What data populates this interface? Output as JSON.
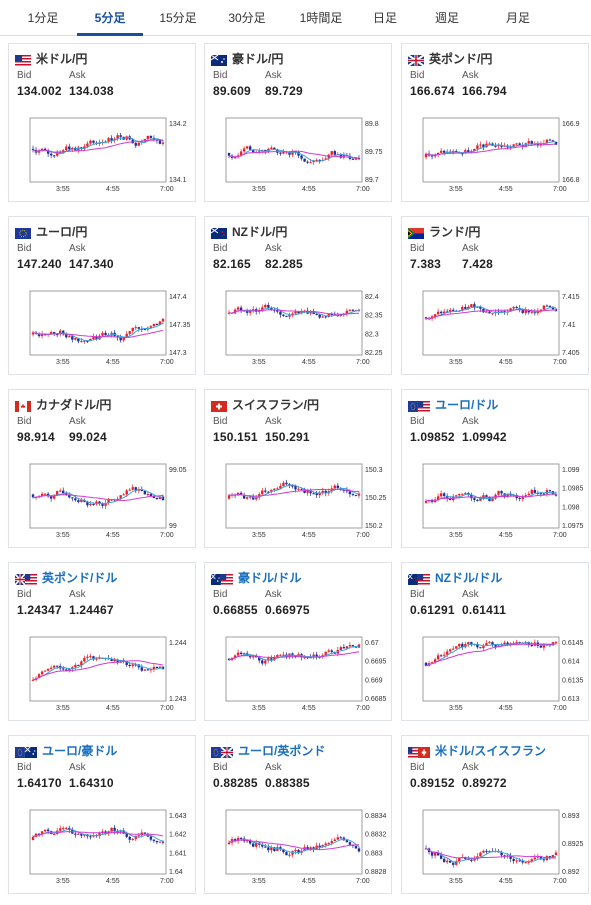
{
  "tabs": [
    {
      "label": "1分足",
      "active": false
    },
    {
      "label": "5分足",
      "active": true
    },
    {
      "label": "15分足",
      "active": false
    },
    {
      "label": "30分足",
      "active": false
    },
    {
      "label": "1時間足",
      "active": false
    },
    {
      "label": "日足",
      "active": false
    },
    {
      "label": "週足",
      "active": false
    },
    {
      "label": "月足",
      "active": false
    }
  ],
  "labels": {
    "bid": "Bid",
    "ask": "Ask"
  },
  "colors": {
    "up": "#e8212d",
    "down": "#1f2f99",
    "ma_short": "#3fa3d9",
    "ma_long": "#d23ad6",
    "accent": "#1a4f9c"
  },
  "cards": [
    {
      "pair": "米ドル/円",
      "flag": "us",
      "bid": "134.002",
      "ask": "134.038",
      "ticks": [
        "134.2",
        "134.1"
      ],
      "xt": [
        "3:55",
        "4:55",
        "7:00"
      ],
      "seed": 1
    },
    {
      "pair": "豪ドル/円",
      "flag": "au",
      "bid": "89.609",
      "ask": "89.729",
      "ticks": [
        "89.8",
        "89.75",
        "89.7"
      ],
      "xt": [
        "3:55",
        "4:55",
        "7:00"
      ],
      "seed": 2
    },
    {
      "pair": "英ポンド/円",
      "flag": "gb",
      "bid": "166.674",
      "ask": "166.794",
      "ticks": [
        "166.9",
        "166.8"
      ],
      "xt": [
        "3:55",
        "4:55",
        "7:00"
      ],
      "seed": 3
    },
    {
      "pair": "ユーロ/円",
      "flag": "eu",
      "bid": "147.240",
      "ask": "147.340",
      "ticks": [
        "147.4",
        "147.35",
        "147.3"
      ],
      "xt": [
        "3:55",
        "4:55",
        "7:00"
      ],
      "seed": 4
    },
    {
      "pair": "NZドル/円",
      "flag": "nz",
      "bid": "82.165",
      "ask": "82.285",
      "ticks": [
        "82.4",
        "82.35",
        "82.3",
        "82.25"
      ],
      "xt": [
        "3:55",
        "4:55",
        "7:00"
      ],
      "seed": 5
    },
    {
      "pair": "ランド/円",
      "flag": "za",
      "bid": "7.383",
      "ask": "7.428",
      "ticks": [
        "7.415",
        "7.41",
        "7.405"
      ],
      "xt": [
        "3:55",
        "4:55",
        "7:00"
      ],
      "seed": 6
    },
    {
      "pair": "カナダドル/円",
      "flag": "ca",
      "bid": "98.914",
      "ask": "99.024",
      "ticks": [
        "99.05",
        "99"
      ],
      "xt": [
        "3:55",
        "4:55",
        "7:00"
      ],
      "seed": 7
    },
    {
      "pair": "スイスフラン/円",
      "flag": "ch",
      "bid": "150.151",
      "ask": "150.291",
      "ticks": [
        "150.3",
        "150.25",
        "150.2"
      ],
      "xt": [
        "3:55",
        "4:55",
        "7:00"
      ],
      "seed": 8
    },
    {
      "pair": "ユーロ/ドル",
      "flag": "eu-us",
      "bid": "1.09852",
      "ask": "1.09942",
      "ticks": [
        "1.099",
        "1.0985",
        "1.098",
        "1.0975"
      ],
      "xt": [
        "3:55",
        "4:55",
        "7:00"
      ],
      "seed": 9,
      "cross": true
    },
    {
      "pair": "英ポンド/ドル",
      "flag": "gb-us",
      "bid": "1.24347",
      "ask": "1.24467",
      "ticks": [
        "1.244",
        "1.243"
      ],
      "xt": [
        "3:55",
        "4:55",
        "7:00"
      ],
      "seed": 10,
      "cross": true
    },
    {
      "pair": "豪ドル/ドル",
      "flag": "au-us",
      "bid": "0.66855",
      "ask": "0.66975",
      "ticks": [
        "0.67",
        "0.6695",
        "0.669",
        "0.6685"
      ],
      "xt": [
        "3:55",
        "4:55",
        "7:00"
      ],
      "seed": 11,
      "cross": true
    },
    {
      "pair": "NZドル/ドル",
      "flag": "nz-us",
      "bid": "0.61291",
      "ask": "0.61411",
      "ticks": [
        "0.6145",
        "0.614",
        "0.6135",
        "0.613"
      ],
      "xt": [
        "3:55",
        "4:55",
        "7:00"
      ],
      "seed": 12,
      "cross": true
    },
    {
      "pair": "ユーロ/豪ドル",
      "flag": "eu-au",
      "bid": "1.64170",
      "ask": "1.64310",
      "ticks": [
        "1.643",
        "1.642",
        "1.641",
        "1.64"
      ],
      "xt": [
        "3:55",
        "4:55",
        "7:00"
      ],
      "seed": 13,
      "cross": true
    },
    {
      "pair": "ユーロ/英ポンド",
      "flag": "eu-gb",
      "bid": "0.88285",
      "ask": "0.88385",
      "ticks": [
        "0.8834",
        "0.8832",
        "0.883",
        "0.8828"
      ],
      "xt": [
        "3:55",
        "4:55",
        "7:00"
      ],
      "seed": 14,
      "cross": true
    },
    {
      "pair": "米ドル/スイスフラン",
      "flag": "us-ch",
      "bid": "0.89152",
      "ask": "0.89272",
      "ticks": [
        "0.893",
        "0.8925",
        "0.892"
      ],
      "xt": [
        "3:55",
        "4:55",
        "7:00"
      ],
      "seed": 15,
      "cross": true
    }
  ]
}
